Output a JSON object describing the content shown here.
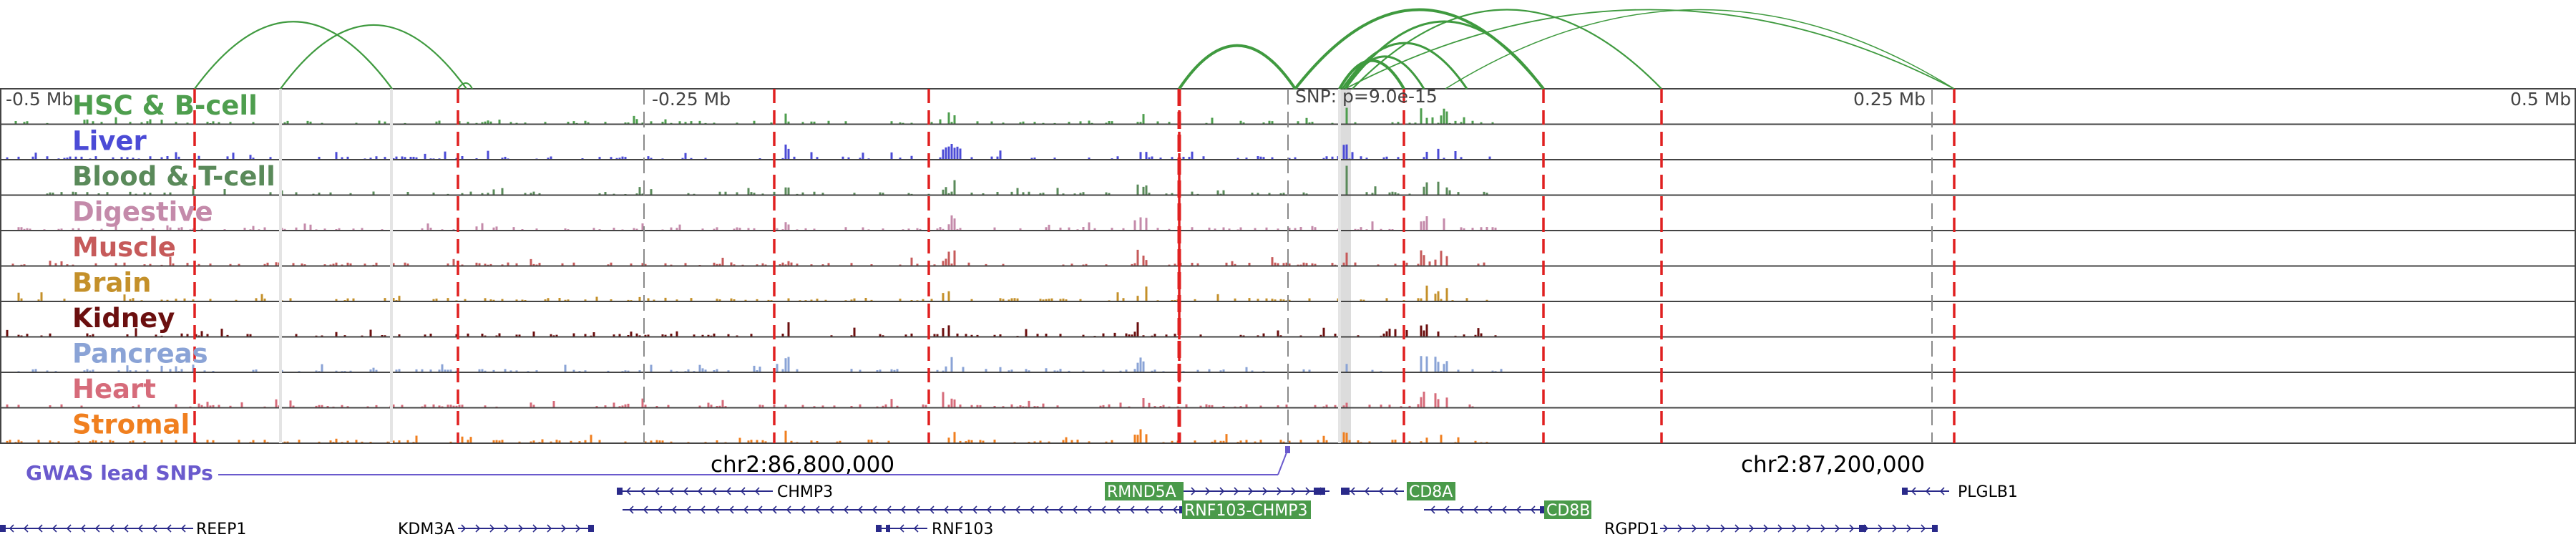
{
  "chart_data": {
    "type": "genome-browser",
    "axis_ticks": [
      "-0.5 Mb",
      "-0.25 Mb",
      "SNP: p=9.0e-15",
      "0.25 Mb",
      "0.5 Mb"
    ],
    "coordinates": [
      "chr2:86,800,000",
      "chr2:87,200,000"
    ],
    "tracks": [
      {
        "name": "HSC & B-cell",
        "color": "#4e9e4e"
      },
      {
        "name": "Liver",
        "color": "#4b4bd6"
      },
      {
        "name": "Blood & T-cell",
        "color": "#5a8a5a"
      },
      {
        "name": "Digestive",
        "color": "#c48aaa"
      },
      {
        "name": "Muscle",
        "color": "#c65a5a"
      },
      {
        "name": "Brain",
        "color": "#c4902a"
      },
      {
        "name": "Kidney",
        "color": "#6b0f0f"
      },
      {
        "name": "Pancreas",
        "color": "#8aa3d6"
      },
      {
        "name": "Heart",
        "color": "#d66b7a"
      },
      {
        "name": "Stromal",
        "color": "#f07f1f"
      }
    ],
    "gwas_label": "GWAS lead SNPs",
    "genes": [
      "CHMP3",
      "RMND5A",
      "CD8A",
      "PLGLB1",
      "RNF103-CHMP3",
      "CD8B",
      "REEP1",
      "KDM3A",
      "RNF103",
      "RGPD1"
    ],
    "highlighted_genes": [
      "RMND5A",
      "CD8A",
      "RNF103-CHMP3",
      "CD8B"
    ],
    "colors": {
      "loop": "#3f9a3f",
      "red_dash": "#e02020",
      "gray_dash": "#8a8a8a",
      "gene_box": "#4a9a4a",
      "gene_line": "#2a2a8a",
      "gwas": "#6a5acd",
      "highlight": "#dcdcdc"
    }
  }
}
